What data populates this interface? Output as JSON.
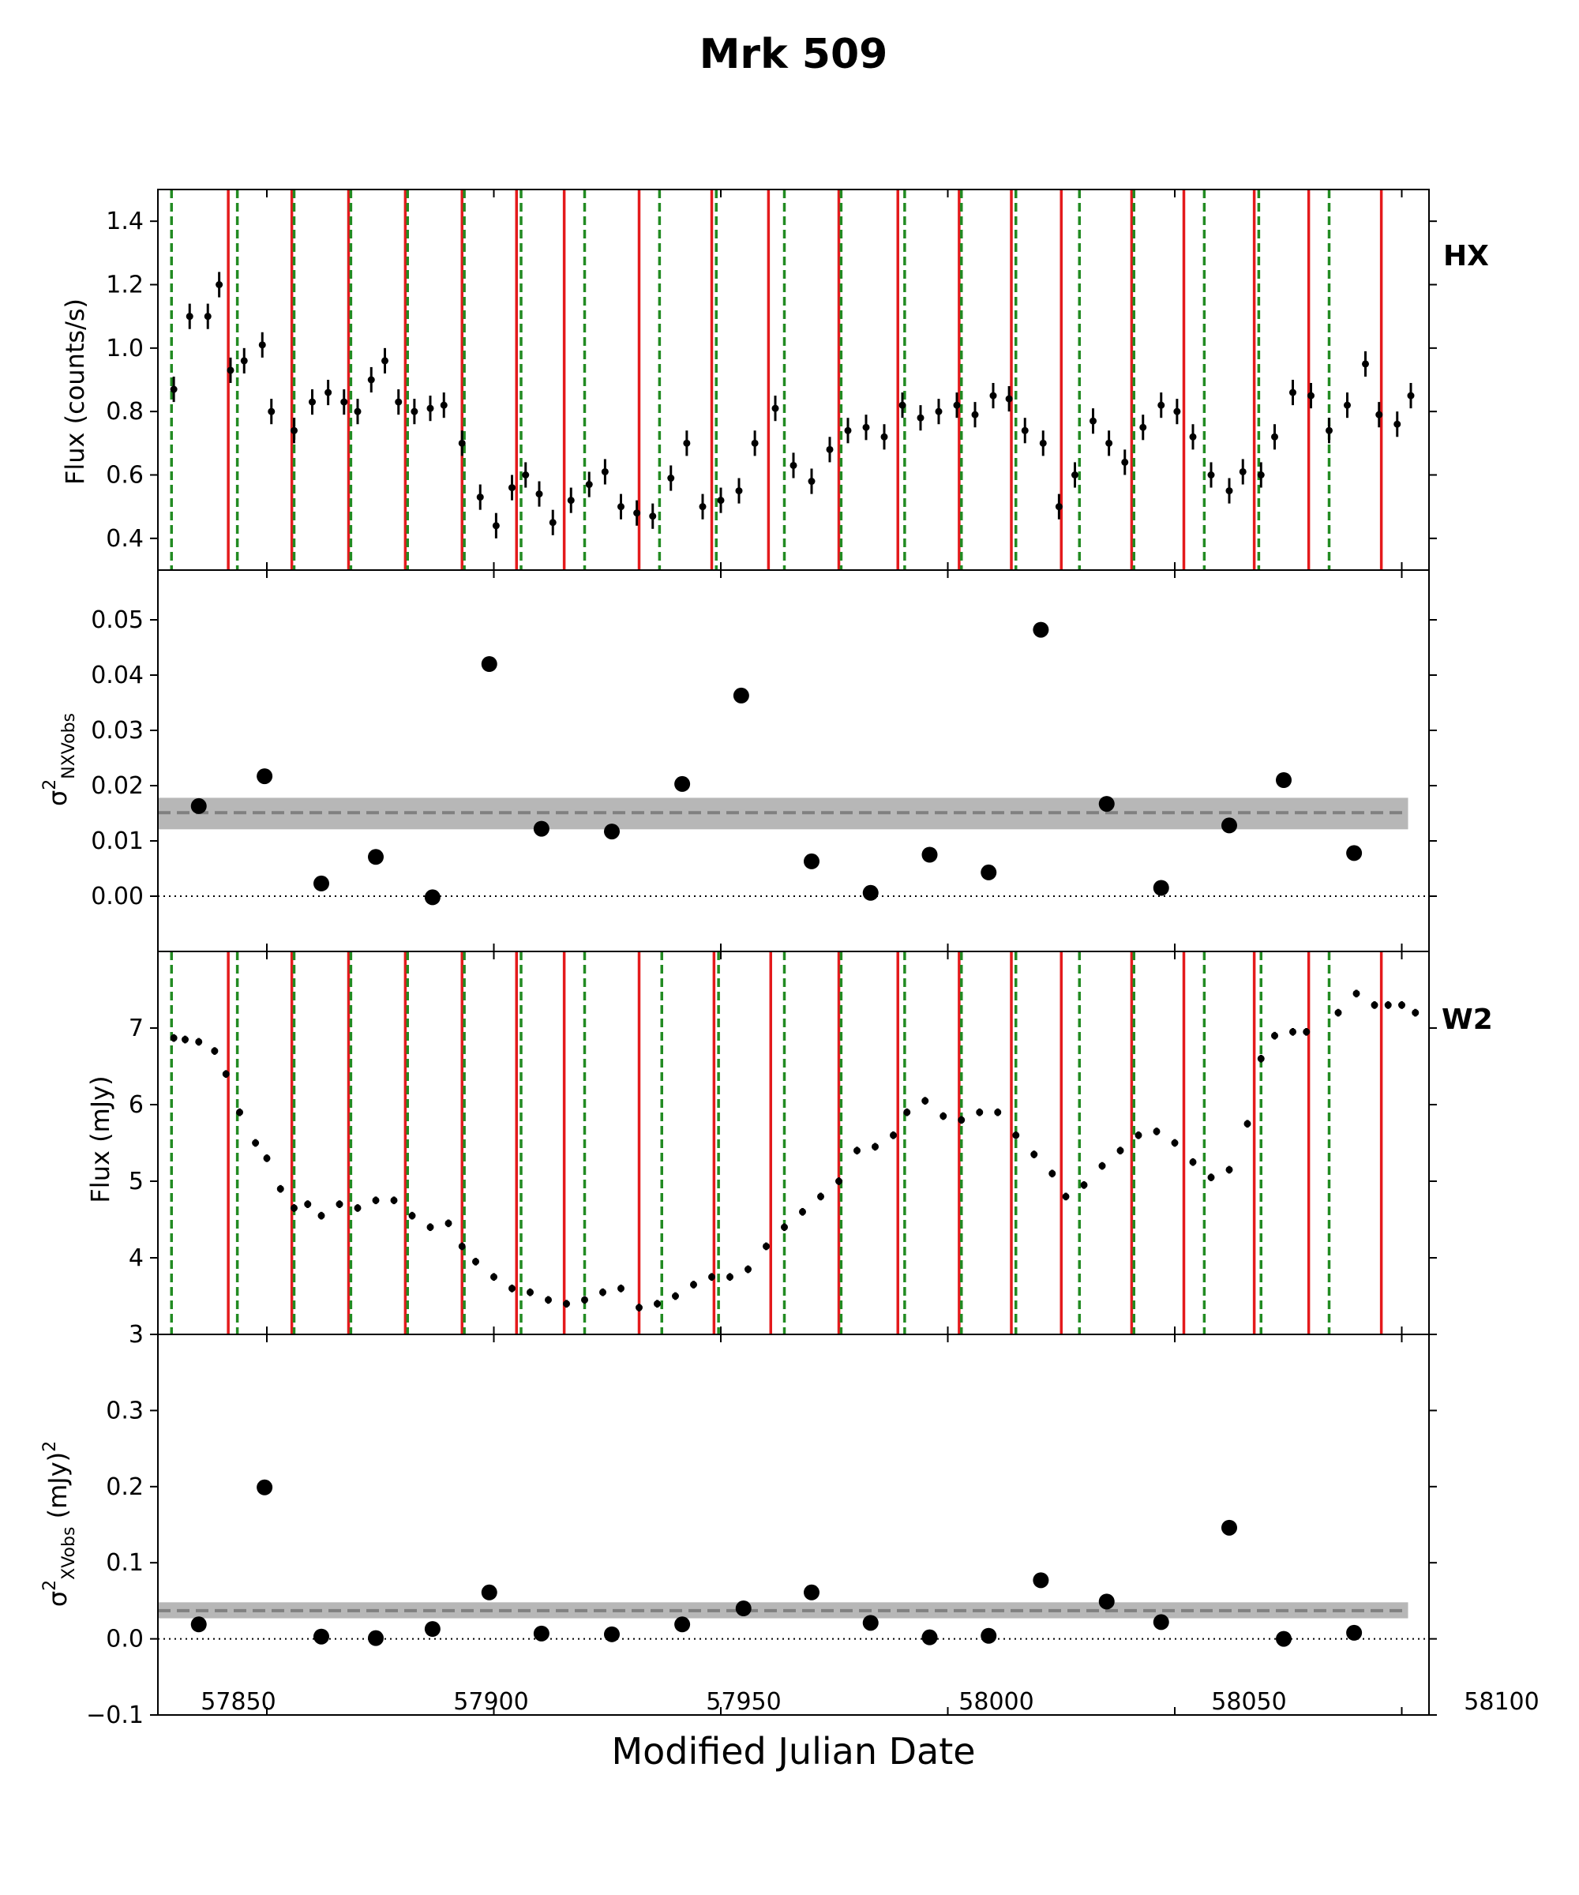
{
  "title": "Mrk 509",
  "xlabel": "Modified Julian Date",
  "xticks": [
    "57850",
    "57900",
    "57950",
    "58000",
    "58050",
    "58100"
  ],
  "colors": {
    "solid_line": "#e41a1c",
    "dashed_line": "#228b22",
    "points": "#000000",
    "band": "#aaaaaa",
    "band_line": "#808080"
  },
  "chart_data": [
    {
      "type": "scatter",
      "panel": "HX",
      "label": "HX",
      "ylabel": "Flux (counts/s)",
      "xlim": [
        57826,
        58106
      ],
      "ylim": [
        0.3,
        1.5
      ],
      "yticks": [
        "0.4",
        "0.6",
        "0.8",
        "1.0",
        "1.2",
        "1.4"
      ],
      "errorbars": true,
      "solid_lines_x": [
        57841.5,
        57855.5,
        57868.0,
        57880.5,
        57893.0,
        57905.0,
        57915.5,
        57932.0,
        57948.0,
        57960.5,
        57976.0,
        57989.0,
        58002.5,
        58014.0,
        58025.0,
        58040.5,
        58052.0,
        58067.5,
        58079.5,
        58095.5
      ],
      "dashed_lines_x": [
        57829.0,
        57843.5,
        57856.0,
        57868.5,
        57881.0,
        57893.5,
        57906.0,
        57920.0,
        57936.5,
        57949.0,
        57964.0,
        57976.5,
        57990.5,
        58003.0,
        58015.0,
        58029.0,
        58041.0,
        58056.5,
        58068.5,
        58084.0
      ],
      "x": [
        57829.5,
        57833,
        57837,
        57839.5,
        57842,
        57845,
        57849,
        57851,
        57856,
        57860,
        57863.5,
        57867,
        57870,
        57873,
        57876,
        57879,
        57882.5,
        57886,
        57889,
        57893,
        57897,
        57900.5,
        57904,
        57907,
        57910,
        57913,
        57917,
        57921,
        57924.5,
        57928,
        57931.5,
        57935,
        57939,
        57942.5,
        57946,
        57950,
        57954,
        57957.5,
        57962,
        57966,
        57970,
        57974,
        57978,
        57982,
        57986,
        57990,
        57994,
        57998,
        58002,
        58006,
        58010,
        58013.5,
        58017,
        58021,
        58024.5,
        58028,
        58032,
        58035.5,
        58039,
        58043,
        58047,
        58050.5,
        58054,
        58058,
        58062,
        58065,
        58069,
        58072,
        58076,
        58080,
        58084,
        58088,
        58092,
        58095,
        58099,
        58102
      ],
      "y": [
        0.87,
        1.1,
        1.1,
        1.2,
        0.93,
        0.96,
        1.01,
        0.8,
        0.74,
        0.83,
        0.86,
        0.83,
        0.8,
        0.9,
        0.96,
        0.83,
        0.8,
        0.81,
        0.82,
        0.7,
        0.53,
        0.44,
        0.56,
        0.6,
        0.54,
        0.45,
        0.52,
        0.57,
        0.61,
        0.5,
        0.48,
        0.47,
        0.59,
        0.7,
        0.5,
        0.52,
        0.55,
        0.7,
        0.81,
        0.63,
        0.58,
        0.68,
        0.74,
        0.75,
        0.72,
        0.82,
        0.78,
        0.8,
        0.82,
        0.79,
        0.85,
        0.84,
        0.74,
        0.7,
        0.5,
        0.6,
        0.77,
        0.7,
        0.64,
        0.75,
        0.82,
        0.8,
        0.72,
        0.6,
        0.55,
        0.61,
        0.6,
        0.72,
        0.86,
        0.85,
        0.74,
        0.82,
        0.95,
        0.79,
        0.76,
        0.85
      ],
      "err": 0.04
    },
    {
      "type": "scatter",
      "panel": "excess-variance-HX",
      "ylabel": "σ²NXVobs",
      "xlim": [
        57826,
        58106
      ],
      "ylim": [
        -0.01,
        0.059
      ],
      "yticks": [
        "0.00",
        "0.01",
        "0.02",
        "0.03",
        "0.04",
        "0.05"
      ],
      "x": [
        57835,
        57849.5,
        57862,
        57874,
        57886.5,
        57899,
        57910.5,
        57926,
        57941.5,
        57954.5,
        57970,
        57983,
        57996,
        58009,
        58020.5,
        58035,
        58047,
        58062,
        58074,
        58089.5
      ],
      "y": [
        0.0163,
        0.0217,
        0.0023,
        0.0071,
        -0.0002,
        0.042,
        0.0122,
        0.0117,
        0.0203,
        0.0363,
        0.0063,
        0.0006,
        0.0075,
        0.0043,
        0.0482,
        0.0167,
        0.0015,
        0.0128,
        0.021,
        0.0078
      ],
      "mean": 0.0151,
      "band": [
        0.0121,
        0.0178
      ],
      "zero_line": 0
    },
    {
      "type": "scatter",
      "panel": "W2",
      "label": "W2",
      "ylabel": "Flux (mJy)",
      "xlim": [
        57826,
        58106
      ],
      "ylim": [
        3,
        8
      ],
      "yticks": [
        "3",
        "4",
        "5",
        "6",
        "7"
      ],
      "errorbars": true,
      "solid_lines_x": [
        57841.5,
        57855.5,
        57868.0,
        57880.5,
        57893.0,
        57905.0,
        57915.5,
        57932.0,
        57948.5,
        57961.0,
        57976.0,
        57989.0,
        58002.5,
        58014.0,
        58025.0,
        58040.5,
        58052.0,
        58067.5,
        58079.5,
        58095.5
      ],
      "dashed_lines_x": [
        57829.0,
        57843.5,
        57856.0,
        57868.5,
        57881.0,
        57893.5,
        57906.0,
        57920.0,
        57937.0,
        57949.5,
        57964.0,
        57976.5,
        57990.5,
        58003.0,
        58015.0,
        58029.0,
        58041.0,
        58056.5,
        58069.0,
        58084.0
      ],
      "x": [
        57829.5,
        57832,
        57835,
        57838.5,
        57841,
        57844,
        57847.5,
        57850,
        57853,
        57856,
        57859,
        57862,
        57866,
        57870,
        57874,
        57878,
        57882,
        57886,
        57890,
        57893,
        57896,
        57900,
        57904,
        57908,
        57912,
        57916,
        57920,
        57924,
        57928,
        57932,
        57936,
        57940,
        57944,
        57948,
        57952,
        57956,
        57960,
        57964,
        57968,
        57972,
        57976,
        57980,
        57984,
        57988,
        57991,
        57995,
        57999,
        58003,
        58007,
        58011,
        58015,
        58019,
        58023,
        58026,
        58030,
        58034,
        58038,
        58042,
        58046,
        58050,
        58054,
        58058,
        58062,
        58066,
        58069,
        58072,
        58076,
        58079,
        58086,
        58090,
        58094,
        58097,
        58100,
        58103
      ],
      "y": [
        6.87,
        6.85,
        6.82,
        6.7,
        6.4,
        5.9,
        5.5,
        5.3,
        4.9,
        4.65,
        4.7,
        4.55,
        4.7,
        4.65,
        4.75,
        4.75,
        4.55,
        4.4,
        4.45,
        4.15,
        3.95,
        3.75,
        3.6,
        3.55,
        3.45,
        3.4,
        3.45,
        3.55,
        3.6,
        3.35,
        3.4,
        3.5,
        3.65,
        3.75,
        3.75,
        3.85,
        4.15,
        4.4,
        4.6,
        4.8,
        5.0,
        5.4,
        5.45,
        5.6,
        5.9,
        6.05,
        5.85,
        5.8,
        5.9,
        5.9,
        5.6,
        5.35,
        5.1,
        4.8,
        4.95,
        5.2,
        5.4,
        5.6,
        5.65,
        5.5,
        5.25,
        5.05,
        5.15,
        5.75,
        6.6,
        6.9,
        6.95,
        6.95,
        7.2,
        7.45,
        7.3,
        7.3,
        7.3,
        7.2
      ],
      "err": 0.05
    },
    {
      "type": "scatter",
      "panel": "excess-variance-W2",
      "ylabel": "σ²XVobs (mJy)²",
      "xlim": [
        57826,
        58106
      ],
      "ylim": [
        -0.1,
        0.4
      ],
      "yticks": [
        "−0.1",
        "0.0",
        "0.1",
        "0.2",
        "0.3"
      ],
      "x": [
        57835,
        57849.5,
        57862,
        57874,
        57886.5,
        57899,
        57910.5,
        57926,
        57941.5,
        57955,
        57970,
        57983,
        57996,
        58009,
        58020.5,
        58035,
        58047,
        58062,
        58074,
        58089.5
      ],
      "y": [
        0.019,
        0.199,
        0.003,
        0.001,
        0.013,
        0.061,
        0.007,
        0.006,
        0.019,
        0.04,
        0.061,
        0.021,
        0.002,
        0.004,
        0.077,
        0.049,
        0.022,
        0.146,
        0.0,
        0.008
      ],
      "mean": 0.037,
      "band": [
        0.027,
        0.048
      ],
      "zero_line": 0
    }
  ]
}
